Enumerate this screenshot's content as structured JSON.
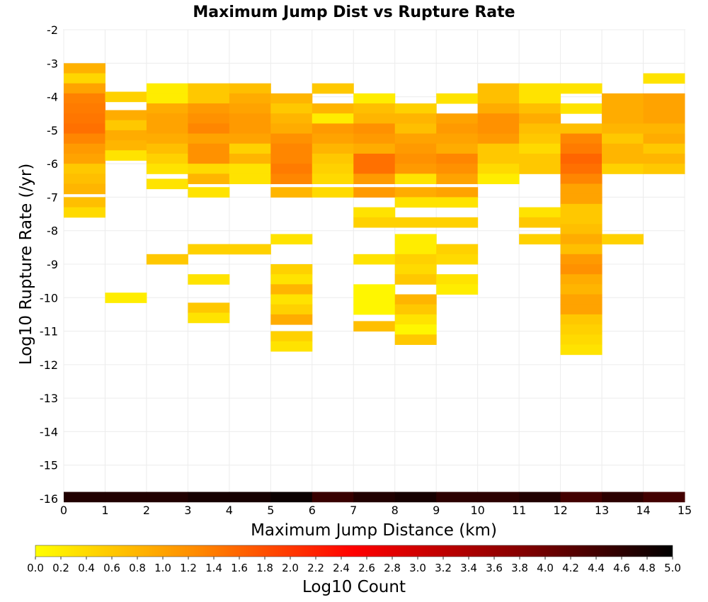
{
  "chart_data": {
    "type": "heatmap",
    "title": "Maximum Jump Dist vs Rupture Rate",
    "xlabel": "Maximum Jump Distance (km)",
    "ylabel": "Log10 Rupture Rate (/yr)",
    "xlim": [
      0,
      15
    ],
    "ylim": [
      -16,
      -2
    ],
    "x_ticks": [
      "0",
      "1",
      "2",
      "3",
      "4",
      "5",
      "6",
      "7",
      "8",
      "9",
      "10",
      "11",
      "12",
      "13",
      "14",
      "15"
    ],
    "y_ticks": [
      "-2",
      "-3",
      "-4",
      "-5",
      "-6",
      "-7",
      "-8",
      "-9",
      "-10",
      "-11",
      "-12",
      "-13",
      "-14",
      "-15",
      "-16"
    ],
    "x_bin_width": 1,
    "y_bin_height": 0.3,
    "grid": true,
    "colorbar": {
      "label": "Log10 Count",
      "range": [
        0,
        5
      ],
      "ticks": [
        "0.0",
        "0.2",
        "0.4",
        "0.6",
        "0.8",
        "1.0",
        "1.2",
        "1.4",
        "1.6",
        "1.8",
        "2.0",
        "2.2",
        "2.4",
        "2.6",
        "2.8",
        "3.0",
        "3.2",
        "3.4",
        "3.6",
        "3.8",
        "4.0",
        "4.2",
        "4.4",
        "4.6",
        "4.8",
        "5.0"
      ],
      "colors": [
        "#ffff00",
        "#ff8c00",
        "#ff0000",
        "#8b0000",
        "#000000"
      ]
    },
    "columns": [
      {
        "x": 0,
        "cells": [
          [
            -3.15,
            0.85
          ],
          [
            -3.45,
            0.45
          ],
          [
            -3.75,
            1.0
          ],
          [
            -4.05,
            1.35
          ],
          [
            -4.35,
            1.4
          ],
          [
            -4.65,
            1.45
          ],
          [
            -4.95,
            1.5
          ],
          [
            -5.25,
            1.3
          ],
          [
            -5.55,
            1.1
          ],
          [
            -5.85,
            1.0
          ],
          [
            -6.15,
            0.6
          ],
          [
            -6.45,
            0.7
          ],
          [
            -6.75,
            0.8
          ],
          [
            -7.15,
            0.7
          ],
          [
            -7.45,
            0.4
          ],
          [
            -15.95,
            4.7
          ]
        ]
      },
      {
        "x": 1,
        "cells": [
          [
            -4.0,
            0.5
          ],
          [
            -4.55,
            0.9
          ],
          [
            -4.85,
            0.6
          ],
          [
            -5.15,
            0.9
          ],
          [
            -5.45,
            0.8
          ],
          [
            -5.75,
            0.3
          ],
          [
            -10.0,
            0.2
          ],
          [
            -15.95,
            4.7
          ]
        ]
      },
      {
        "x": 2,
        "cells": [
          [
            -3.75,
            0.2
          ],
          [
            -4.05,
            0.2
          ],
          [
            -4.35,
            0.9
          ],
          [
            -4.65,
            1.0
          ],
          [
            -4.95,
            1.0
          ],
          [
            -5.25,
            0.9
          ],
          [
            -5.55,
            0.7
          ],
          [
            -5.85,
            0.5
          ],
          [
            -6.15,
            0.3
          ],
          [
            -6.6,
            0.3
          ],
          [
            -8.85,
            0.6
          ],
          [
            -15.95,
            4.7
          ]
        ]
      },
      {
        "x": 3,
        "cells": [
          [
            -3.75,
            0.6
          ],
          [
            -4.05,
            0.6
          ],
          [
            -4.35,
            1.1
          ],
          [
            -4.65,
            1.2
          ],
          [
            -4.95,
            1.3
          ],
          [
            -5.25,
            1.0
          ],
          [
            -5.55,
            1.2
          ],
          [
            -5.85,
            1.2
          ],
          [
            -6.15,
            0.4
          ],
          [
            -6.45,
            0.8
          ],
          [
            -6.85,
            0.3
          ],
          [
            -8.55,
            0.5
          ],
          [
            -9.45,
            0.3
          ],
          [
            -10.3,
            0.6
          ],
          [
            -10.6,
            0.3
          ],
          [
            -15.95,
            4.8
          ]
        ]
      },
      {
        "x": 4,
        "cells": [
          [
            -3.75,
            0.7
          ],
          [
            -4.05,
            0.9
          ],
          [
            -4.35,
            1.0
          ],
          [
            -4.65,
            1.1
          ],
          [
            -4.95,
            1.1
          ],
          [
            -5.25,
            1.0
          ],
          [
            -5.55,
            0.5
          ],
          [
            -5.85,
            0.8
          ],
          [
            -6.15,
            0.3
          ],
          [
            -6.45,
            0.3
          ],
          [
            -8.55,
            0.5
          ],
          [
            -15.95,
            4.8
          ]
        ]
      },
      {
        "x": 5,
        "cells": [
          [
            -4.05,
            0.8
          ],
          [
            -4.35,
            0.6
          ],
          [
            -4.65,
            0.8
          ],
          [
            -4.95,
            0.9
          ],
          [
            -5.25,
            1.2
          ],
          [
            -5.55,
            1.3
          ],
          [
            -5.85,
            1.3
          ],
          [
            -6.15,
            1.4
          ],
          [
            -6.45,
            1.3
          ],
          [
            -6.85,
            0.8
          ],
          [
            -8.25,
            0.3
          ],
          [
            -9.15,
            0.5
          ],
          [
            -9.45,
            0.3
          ],
          [
            -9.75,
            0.8
          ],
          [
            -10.05,
            0.3
          ],
          [
            -10.35,
            0.5
          ],
          [
            -10.65,
            0.9
          ],
          [
            -11.15,
            0.5
          ],
          [
            -11.45,
            0.3
          ],
          [
            -15.95,
            4.9
          ]
        ]
      },
      {
        "x": 6,
        "cells": [
          [
            -3.75,
            0.6
          ],
          [
            -4.35,
            0.8
          ],
          [
            -4.65,
            0.2
          ],
          [
            -4.95,
            1.1
          ],
          [
            -5.25,
            1.0
          ],
          [
            -5.55,
            0.8
          ],
          [
            -5.85,
            0.6
          ],
          [
            -6.15,
            0.5
          ],
          [
            -6.45,
            0.4
          ],
          [
            -6.85,
            0.4
          ],
          [
            -15.95,
            4.5
          ]
        ]
      },
      {
        "x": 7,
        "cells": [
          [
            -4.05,
            0.2
          ],
          [
            -4.35,
            0.7
          ],
          [
            -4.65,
            0.8
          ],
          [
            -4.95,
            1.2
          ],
          [
            -5.25,
            1.1
          ],
          [
            -5.55,
            0.9
          ],
          [
            -5.85,
            1.5
          ],
          [
            -6.15,
            1.5
          ],
          [
            -6.45,
            1.1
          ],
          [
            -6.85,
            1.1
          ],
          [
            -7.45,
            0.3
          ],
          [
            -7.75,
            0.5
          ],
          [
            -8.85,
            0.3
          ],
          [
            -9.75,
            0.1
          ],
          [
            -10.05,
            0.1
          ],
          [
            -10.35,
            0.1
          ],
          [
            -10.85,
            0.7
          ],
          [
            -15.95,
            4.7
          ]
        ]
      },
      {
        "x": 8,
        "cells": [
          [
            -4.35,
            0.5
          ],
          [
            -4.65,
            0.8
          ],
          [
            -4.95,
            0.7
          ],
          [
            -5.25,
            1.0
          ],
          [
            -5.55,
            1.1
          ],
          [
            -5.85,
            1.2
          ],
          [
            -6.15,
            1.1
          ],
          [
            -6.45,
            0.3
          ],
          [
            -6.85,
            0.9
          ],
          [
            -7.15,
            0.3
          ],
          [
            -7.75,
            0.5
          ],
          [
            -8.25,
            0.2
          ],
          [
            -8.55,
            0.2
          ],
          [
            -8.85,
            0.5
          ],
          [
            -9.15,
            0.4
          ],
          [
            -9.45,
            0.6
          ],
          [
            -10.05,
            0.8
          ],
          [
            -10.35,
            0.6
          ],
          [
            -10.65,
            0.3
          ],
          [
            -10.95,
            0.1
          ],
          [
            -11.25,
            0.6
          ],
          [
            -15.95,
            4.8
          ]
        ]
      },
      {
        "x": 9,
        "cells": [
          [
            -4.05,
            0.3
          ],
          [
            -4.65,
            1.0
          ],
          [
            -4.95,
            1.1
          ],
          [
            -5.25,
            1.0
          ],
          [
            -5.55,
            0.9
          ],
          [
            -5.85,
            1.3
          ],
          [
            -6.15,
            1.2
          ],
          [
            -6.45,
            1.0
          ],
          [
            -6.85,
            1.0
          ],
          [
            -7.15,
            0.3
          ],
          [
            -7.75,
            0.5
          ],
          [
            -8.55,
            0.5
          ],
          [
            -8.85,
            0.4
          ],
          [
            -9.45,
            0.3
          ],
          [
            -9.75,
            0.2
          ],
          [
            -15.95,
            4.6
          ]
        ]
      },
      {
        "x": 10,
        "cells": [
          [
            -3.75,
            0.7
          ],
          [
            -4.05,
            0.7
          ],
          [
            -4.35,
            0.9
          ],
          [
            -4.65,
            1.2
          ],
          [
            -4.95,
            1.2
          ],
          [
            -5.25,
            1.1
          ],
          [
            -5.55,
            0.6
          ],
          [
            -5.85,
            0.6
          ],
          [
            -6.15,
            0.4
          ],
          [
            -6.45,
            0.2
          ],
          [
            -15.95,
            4.6
          ]
        ]
      },
      {
        "x": 11,
        "cells": [
          [
            -3.75,
            0.3
          ],
          [
            -4.05,
            0.3
          ],
          [
            -4.35,
            0.7
          ],
          [
            -4.65,
            0.9
          ],
          [
            -4.95,
            0.7
          ],
          [
            -5.25,
            0.6
          ],
          [
            -5.55,
            0.4
          ],
          [
            -5.85,
            0.6
          ],
          [
            -6.15,
            0.6
          ],
          [
            -7.45,
            0.3
          ],
          [
            -7.75,
            0.6
          ],
          [
            -8.25,
            0.5
          ],
          [
            -15.95,
            4.7
          ]
        ]
      },
      {
        "x": 12,
        "cells": [
          [
            -3.75,
            0.3
          ],
          [
            -4.35,
            0.3
          ],
          [
            -4.95,
            0.7
          ],
          [
            -5.25,
            1.3
          ],
          [
            -5.55,
            1.4
          ],
          [
            -5.85,
            1.6
          ],
          [
            -6.15,
            1.5
          ],
          [
            -6.45,
            1.3
          ],
          [
            -6.75,
            1.0
          ],
          [
            -7.05,
            1.0
          ],
          [
            -7.35,
            0.6
          ],
          [
            -7.65,
            0.6
          ],
          [
            -7.95,
            0.7
          ],
          [
            -8.25,
            0.9
          ],
          [
            -8.55,
            0.7
          ],
          [
            -8.85,
            1.1
          ],
          [
            -9.15,
            1.2
          ],
          [
            -9.45,
            0.9
          ],
          [
            -9.75,
            0.8
          ],
          [
            -10.05,
            1.0
          ],
          [
            -10.35,
            1.0
          ],
          [
            -10.65,
            0.6
          ],
          [
            -10.95,
            0.5
          ],
          [
            -11.25,
            0.4
          ],
          [
            -11.55,
            0.3
          ],
          [
            -15.95,
            4.4
          ]
        ]
      },
      {
        "x": 13,
        "cells": [
          [
            -4.05,
            0.9
          ],
          [
            -4.35,
            0.9
          ],
          [
            -4.65,
            0.9
          ],
          [
            -4.95,
            0.8
          ],
          [
            -5.25,
            0.6
          ],
          [
            -5.55,
            0.8
          ],
          [
            -5.85,
            0.8
          ],
          [
            -6.15,
            0.5
          ],
          [
            -8.25,
            0.5
          ],
          [
            -15.95,
            4.6
          ]
        ]
      },
      {
        "x": 14,
        "cells": [
          [
            -3.45,
            0.3
          ],
          [
            -4.05,
            1.0
          ],
          [
            -4.35,
            1.0
          ],
          [
            -4.65,
            1.0
          ],
          [
            -4.95,
            0.8
          ],
          [
            -5.25,
            0.9
          ],
          [
            -5.55,
            0.6
          ],
          [
            -5.85,
            0.8
          ],
          [
            -6.15,
            0.6
          ],
          [
            -15.95,
            4.4
          ]
        ]
      }
    ]
  }
}
